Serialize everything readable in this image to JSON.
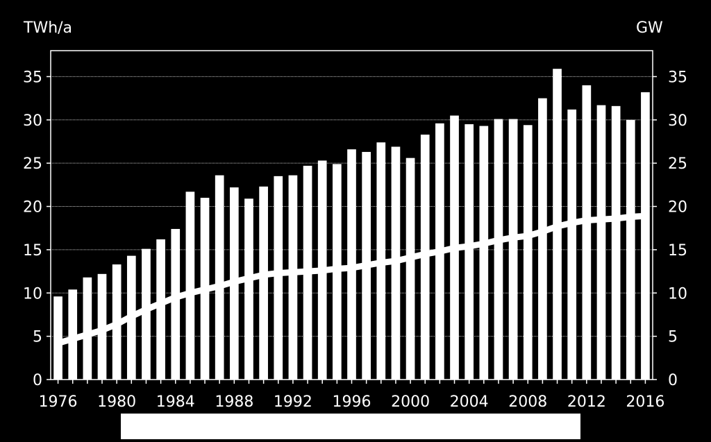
{
  "chart_data": {
    "type": "bar",
    "title": "",
    "y_left_label": "TWh/a",
    "y_right_label": "GW",
    "ylim": [
      0,
      38
    ],
    "yticks": [
      0,
      5,
      10,
      15,
      20,
      25,
      30,
      35
    ],
    "xticks": [
      "1976",
      "1980",
      "1984",
      "1988",
      "1992",
      "1996",
      "2000",
      "2004",
      "2008",
      "2012",
      "2016"
    ],
    "grid": true,
    "categories": [
      1976,
      1977,
      1978,
      1979,
      1980,
      1981,
      1982,
      1983,
      1984,
      1985,
      1986,
      1987,
      1988,
      1989,
      1990,
      1991,
      1992,
      1993,
      1994,
      1995,
      1996,
      1997,
      1998,
      1999,
      2000,
      2001,
      2002,
      2003,
      2004,
      2005,
      2006,
      2007,
      2008,
      2009,
      2010,
      2011,
      2012,
      2013,
      2014,
      2015,
      2016
    ],
    "series": [
      {
        "type": "bar",
        "axis": "left",
        "color": "#ffffff",
        "values": [
          9.6,
          10.4,
          11.8,
          12.2,
          13.3,
          14.3,
          15.1,
          16.2,
          17.4,
          21.7,
          21.0,
          23.6,
          22.2,
          20.9,
          22.3,
          23.5,
          23.6,
          24.7,
          25.3,
          24.9,
          26.6,
          26.3,
          27.4,
          26.9,
          25.6,
          28.3,
          29.6,
          30.5,
          29.5,
          29.3,
          30.1,
          30.1,
          29.4,
          32.5,
          35.9,
          31.2,
          34.0,
          31.7,
          31.6,
          30.0,
          33.2
        ]
      },
      {
        "type": "line",
        "axis": "right",
        "color": "#ffffff",
        "values": [
          4.2,
          4.7,
          5.2,
          5.7,
          6.4,
          7.3,
          8.1,
          8.8,
          9.5,
          10.0,
          10.4,
          10.8,
          11.3,
          11.7,
          12.1,
          12.3,
          12.4,
          12.5,
          12.6,
          12.8,
          12.9,
          13.2,
          13.5,
          13.7,
          14.1,
          14.5,
          14.8,
          15.2,
          15.4,
          15.7,
          16.1,
          16.4,
          16.6,
          17.1,
          17.7,
          18.1,
          18.4,
          18.5,
          18.6,
          18.8,
          18.9
        ]
      }
    ]
  }
}
